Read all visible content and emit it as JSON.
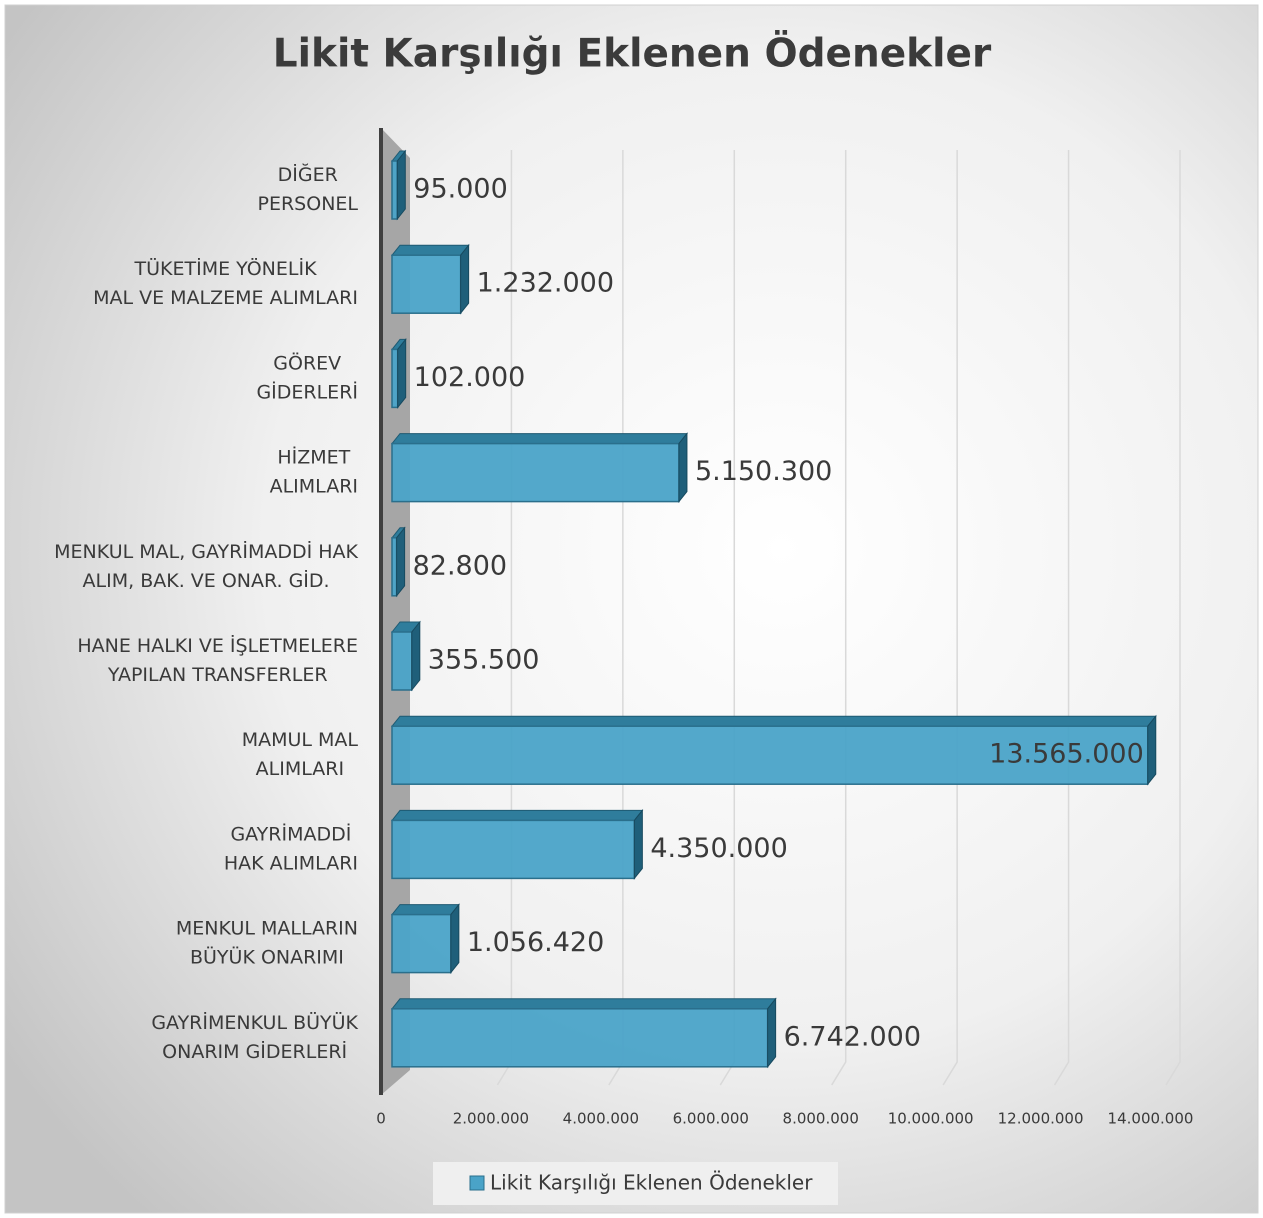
{
  "chart_data": {
    "type": "bar3d-horizontal",
    "title": "Likit Karşılığı Eklenen Ödenekler",
    "categories": [
      [
        "DİĞER",
        "PERSONEL"
      ],
      [
        "TÜKETİME YÖNELİK",
        "MAL VE MALZEME ALIMLARI"
      ],
      [
        "GÖREV",
        "GİDERLERİ"
      ],
      [
        "HİZMET",
        "ALIMLARI"
      ],
      [
        "MENKUL MAL, GAYRİMADDİ HAK",
        "ALIM, BAK. VE ONAR. GİD."
      ],
      [
        "HANE HALKI VE İŞLETMELERE",
        "YAPILAN TRANSFERLER"
      ],
      [
        "MAMUL MAL",
        "ALIMLARI"
      ],
      [
        "GAYRİMADDİ",
        "HAK ALIMLARI"
      ],
      [
        "MENKUL MALLARIN",
        "BÜYÜK ONARIMI"
      ],
      [
        "GAYRİMENKUL BÜYÜK",
        "ONARIM GİDERLERİ"
      ]
    ],
    "series": [
      {
        "name": "Likit Karşılığı Eklenen Ödenekler",
        "color": "#4aa3c8",
        "values": [
          95000,
          1232000,
          102000,
          5150300,
          82800,
          355500,
          13565000,
          4350000,
          1056420,
          6742000
        ],
        "value_labels": [
          "95.000",
          "1.232.000",
          "102.000",
          "5.150.300",
          "82.800",
          "355.500",
          "13.565.000",
          "4.350.000",
          "1.056.420",
          "6.742.000"
        ]
      }
    ],
    "xlim": [
      0,
      14000000
    ],
    "xticks": [
      0,
      {
        "value": 2000000,
        "label": "2.000.000"
      },
      {
        "value": 4000000,
        "label": "4.000.000"
      },
      {
        "value": 6000000,
        "label": "6.000.000"
      },
      {
        "value": 8000000,
        "label": "8.000.000"
      },
      {
        "value": 10000000,
        "label": "10.000.000"
      },
      {
        "value": 12000000,
        "label": "12.000.000"
      },
      {
        "value": 14000000,
        "label": "14.000.000"
      }
    ],
    "grid": true,
    "legend": "bottom"
  }
}
